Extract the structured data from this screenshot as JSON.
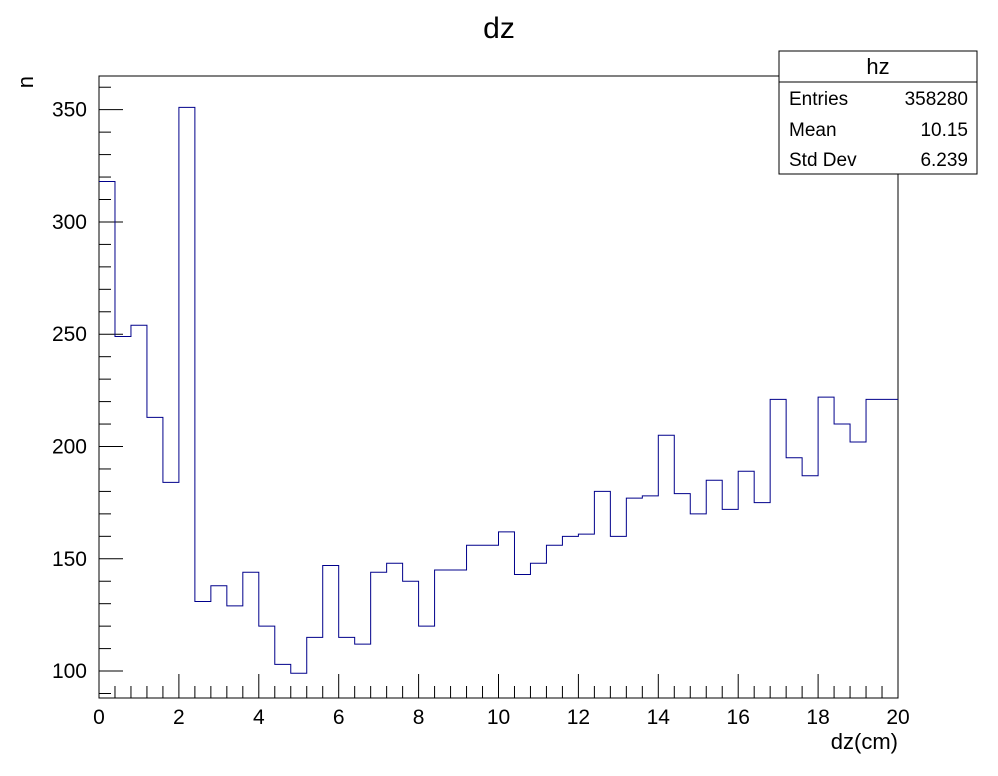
{
  "chart_data": {
    "type": "bar",
    "title": "dz",
    "xlabel": "dz(cm)",
    "ylabel": "n",
    "xlim": [
      0,
      20
    ],
    "ylim": [
      88,
      365
    ],
    "grid": false,
    "x_ticks": [
      0,
      2,
      4,
      6,
      8,
      10,
      12,
      14,
      16,
      18,
      20
    ],
    "x_tick_labels": [
      "0",
      "2",
      "4",
      "6",
      "8",
      "10",
      "12",
      "14",
      "16",
      "18",
      "20"
    ],
    "y_ticks": [
      100,
      150,
      200,
      250,
      300,
      350
    ],
    "y_tick_labels": [
      "100",
      "150",
      "200",
      "250",
      "300",
      "350"
    ],
    "bin_width": 0.4,
    "x": [
      0.0,
      0.4,
      0.8,
      1.2,
      1.6,
      2.0,
      2.4,
      2.8,
      3.2,
      3.6,
      4.0,
      4.4,
      4.8,
      5.2,
      5.6,
      6.0,
      6.4,
      6.8,
      7.2,
      7.6,
      8.0,
      8.4,
      8.8,
      9.2,
      9.6,
      10.0,
      10.4,
      10.8,
      11.2,
      11.6,
      12.0,
      12.4,
      12.8,
      13.2,
      13.6,
      14.0,
      14.4,
      14.8,
      15.2,
      15.6,
      16.0,
      16.4,
      16.8,
      17.2,
      17.6,
      18.0,
      18.4,
      18.8,
      19.2,
      19.6
    ],
    "values": [
      318,
      249,
      254,
      213,
      184,
      351,
      131,
      138,
      129,
      144,
      120,
      103,
      99,
      115,
      147,
      115,
      112,
      144,
      148,
      140,
      120,
      145,
      145,
      156,
      156,
      162,
      143,
      148,
      156,
      160,
      161,
      180,
      160,
      177,
      178,
      205,
      179,
      170,
      185,
      172,
      189,
      175,
      221,
      195,
      187,
      222,
      210,
      202,
      221,
      221
    ],
    "line_color": "#00008b",
    "stats_box": {
      "name": "hz",
      "entries_label": "Entries",
      "entries_value": "358280",
      "mean_label": "Mean",
      "mean_value": "10.15",
      "stddev_label": "Std Dev",
      "stddev_value": "6.239"
    }
  }
}
